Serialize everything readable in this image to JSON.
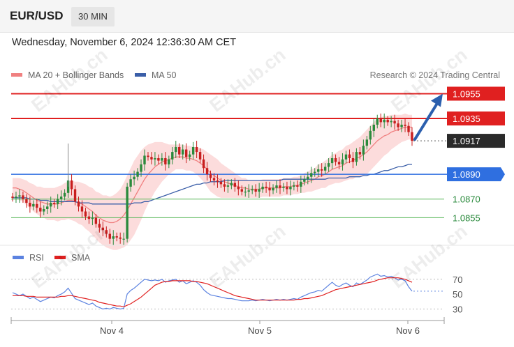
{
  "header": {
    "symbol": "EUR/USD",
    "timeframe": "30 MIN",
    "datetime": "Wednesday, November 6, 2024 12:36:30 AM CET"
  },
  "legend": {
    "ma20_label": "MA 20 + Bollinger Bands",
    "ma50_label": "MA 50",
    "credit": "Research © 2024 Trading Central"
  },
  "rsi_legend": {
    "rsi_label": "RSI",
    "sma_label": "SMA"
  },
  "watermark": "EAHub.cn",
  "colors": {
    "resistance": "#e02020",
    "support": "#2f6fe0",
    "target": "#5cb85c",
    "candle_up": "#2a8a3c",
    "candle_down": "#c81e1e",
    "ma20": "#f08080",
    "ma50": "#3a5ea8",
    "band_fill": "#fbd0d0",
    "rsi": "#5b82e0",
    "rsi_sma": "#e02020",
    "arrow": "#2b5fae",
    "price_tag": "#2a2a2a"
  },
  "chart_data": [
    {
      "type": "candlestick",
      "ylim": [
        1.0835,
        1.0962
      ],
      "x_ticks": [
        "Nov 4",
        "Nov 5",
        "Nov 6"
      ],
      "levels": [
        {
          "value": 1.0955,
          "label": "1.0955",
          "kind": "resistance"
        },
        {
          "value": 1.0935,
          "label": "1.0935",
          "kind": "resistance"
        },
        {
          "value": 1.0917,
          "label": "1.0917",
          "kind": "last_price"
        },
        {
          "value": 1.089,
          "label": "1.0890",
          "kind": "support"
        },
        {
          "value": 1.087,
          "label": "1.0870",
          "kind": "target"
        },
        {
          "value": 1.0855,
          "label": "1.0855",
          "kind": "target"
        }
      ],
      "close": [
        1.0871,
        1.0872,
        1.0873,
        1.087,
        1.0867,
        1.0864,
        1.0866,
        1.0863,
        1.086,
        1.0862,
        1.0864,
        1.0867,
        1.0866,
        1.087,
        1.0872,
        1.0875,
        1.0885,
        1.0878,
        1.0868,
        1.0864,
        1.086,
        1.0856,
        1.0854,
        1.0855,
        1.085,
        1.0847,
        1.0845,
        1.0842,
        1.0838,
        1.084,
        1.0839,
        1.0838,
        1.0838,
        1.088,
        1.0886,
        1.0888,
        1.0892,
        1.0898,
        1.0905,
        1.0904,
        1.0902,
        1.0903,
        1.0901,
        1.0903,
        1.0898,
        1.0902,
        1.0908,
        1.0912,
        1.0906,
        1.091,
        1.0904,
        1.0906,
        1.0912,
        1.0908,
        1.0902,
        1.0895,
        1.089,
        1.0887,
        1.0885,
        1.0884,
        1.0882,
        1.088,
        1.0881,
        1.0883,
        1.088,
        1.0878,
        1.0876,
        1.0876,
        1.0877,
        1.0878,
        1.0876,
        1.0878,
        1.088,
        1.0879,
        1.0877,
        1.0879,
        1.0881,
        1.0879,
        1.088,
        1.0878,
        1.088,
        1.0881,
        1.088,
        1.0884,
        1.0886,
        1.0888,
        1.0891,
        1.0892,
        1.0894,
        1.0893,
        1.0896,
        1.0899,
        1.0903,
        1.09,
        1.0898,
        1.0902,
        1.0906,
        1.0903,
        1.09,
        1.0908,
        1.0906,
        1.0913,
        1.0918,
        1.0925,
        1.093,
        1.0935,
        1.0932,
        1.0934,
        1.0932,
        1.0933,
        1.0931,
        1.0928,
        1.093,
        1.0929,
        1.0924,
        1.0917
      ],
      "ma20": [
        1.0879,
        1.0879,
        1.0878,
        1.0877,
        1.0875,
        1.0873,
        1.0871,
        1.0869,
        1.0868,
        1.0867,
        1.0866,
        1.0866,
        1.0866,
        1.0866,
        1.0867,
        1.0868,
        1.0869,
        1.0869,
        1.0868,
        1.0867,
        1.0866,
        1.0864,
        1.0862,
        1.086,
        1.0857,
        1.0855,
        1.0853,
        1.0852,
        1.0851,
        1.0851,
        1.0852,
        1.0854,
        1.0857,
        1.0861,
        1.0866,
        1.0871,
        1.0876,
        1.0881,
        1.0886,
        1.089,
        1.0893,
        1.0896,
        1.0898,
        1.09,
        1.0901,
        1.0902,
        1.0903,
        1.0904,
        1.0904,
        1.0904,
        1.0903,
        1.0903,
        1.0902,
        1.0901,
        1.0899,
        1.0897,
        1.0894,
        1.0891,
        1.0889,
        1.0887,
        1.0885,
        1.0884,
        1.0883,
        1.0882,
        1.0881,
        1.088,
        1.0879,
        1.0879,
        1.0878,
        1.0878,
        1.0878,
        1.0878,
        1.0879,
        1.0879,
        1.0879,
        1.0879,
        1.0879,
        1.0879,
        1.088,
        1.088,
        1.088,
        1.0881,
        1.0881,
        1.0882,
        1.0883,
        1.0884,
        1.0885,
        1.0886,
        1.0888,
        1.0889,
        1.089,
        1.0892,
        1.0894,
        1.0895,
        1.0896,
        1.0897,
        1.0899,
        1.09,
        1.0901,
        1.0903,
        1.0904,
        1.0906,
        1.0908,
        1.0911,
        1.0914,
        1.0917,
        1.0919,
        1.0921,
        1.0922,
        1.0924,
        1.0925,
        1.0926,
        1.0927,
        1.0928,
        1.0928,
        1.0928
      ],
      "ma50": [
        1.0871,
        1.0871,
        1.0871,
        1.0871,
        1.0871,
        1.087,
        1.087,
        1.087,
        1.0869,
        1.0869,
        1.0869,
        1.0868,
        1.0868,
        1.0868,
        1.0868,
        1.0868,
        1.0868,
        1.0868,
        1.0868,
        1.0867,
        1.0867,
        1.0867,
        1.0867,
        1.0866,
        1.0866,
        1.0866,
        1.0866,
        1.0866,
        1.0866,
        1.0866,
        1.0866,
        1.0866,
        1.0866,
        1.0866,
        1.0866,
        1.0867,
        1.0867,
        1.0867,
        1.0868,
        1.0868,
        1.0869,
        1.087,
        1.0871,
        1.0872,
        1.0873,
        1.0874,
        1.0875,
        1.0876,
        1.0877,
        1.0878,
        1.0879,
        1.088,
        1.0881,
        1.0882,
        1.0882,
        1.0883,
        1.0883,
        1.0884,
        1.0884,
        1.0884,
        1.0884,
        1.0885,
        1.0885,
        1.0885,
        1.0885,
        1.0885,
        1.0885,
        1.0885,
        1.0885,
        1.0885,
        1.0885,
        1.0885,
        1.0885,
        1.0885,
        1.0885,
        1.0885,
        1.0885,
        1.0885,
        1.0886,
        1.0886,
        1.0886,
        1.0886,
        1.0886,
        1.0886,
        1.0886,
        1.0886,
        1.0886,
        1.0886,
        1.0886,
        1.0886,
        1.0886,
        1.0887,
        1.0887,
        1.0887,
        1.0887,
        1.0887,
        1.0887,
        1.0888,
        1.0888,
        1.0888,
        1.0888,
        1.0889,
        1.0889,
        1.089,
        1.089,
        1.0891,
        1.0892,
        1.0893,
        1.0893,
        1.0894,
        1.0895,
        1.0896,
        1.0896,
        1.0897,
        1.0898,
        1.0898
      ],
      "bb_width": [
        0.0008,
        0.0008,
        0.0009,
        0.0009,
        0.001,
        0.001,
        0.0011,
        0.0011,
        0.0012,
        0.0012,
        0.0013,
        0.0013,
        0.0013,
        0.0014,
        0.0014,
        0.0015,
        0.0015,
        0.0016,
        0.0016,
        0.0017,
        0.0017,
        0.0018,
        0.0018,
        0.0019,
        0.0019,
        0.002,
        0.002,
        0.0021,
        0.0021,
        0.0022,
        0.0023,
        0.0024,
        0.0026,
        0.0028,
        0.0029,
        0.003,
        0.0029,
        0.0028,
        0.0026,
        0.0024,
        0.0022,
        0.002,
        0.0018,
        0.0016,
        0.0014,
        0.0012,
        0.0011,
        0.001,
        0.001,
        0.001,
        0.001,
        0.001,
        0.001,
        0.0011,
        0.0012,
        0.0013,
        0.0014,
        0.0015,
        0.0015,
        0.0015,
        0.0014,
        0.0013,
        0.0012,
        0.0011,
        0.001,
        0.0009,
        0.0008,
        0.0008,
        0.0007,
        0.0007,
        0.0007,
        0.0007,
        0.0007,
        0.0007,
        0.0007,
        0.0007,
        0.0007,
        0.0007,
        0.0007,
        0.0007,
        0.0007,
        0.0007,
        0.0007,
        0.0007,
        0.0008,
        0.0008,
        0.0009,
        0.0009,
        0.001,
        0.001,
        0.0011,
        0.0011,
        0.0012,
        0.0012,
        0.0013,
        0.0013,
        0.0014,
        0.0014,
        0.0015,
        0.0015,
        0.0016,
        0.0017,
        0.0018,
        0.0018,
        0.0018,
        0.0018,
        0.0017,
        0.0016,
        0.0015,
        0.0014,
        0.0013,
        0.0012,
        0.0011,
        0.0011,
        0.001,
        0.001
      ],
      "arrow": {
        "from": 1.0917,
        "to": 1.0955
      }
    },
    {
      "type": "line",
      "ylim": [
        22,
        82
      ],
      "y_ticks": [
        30,
        50,
        70
      ],
      "reference_levels": [
        70,
        30
      ],
      "series": [
        {
          "name": "RSI",
          "values": [
            52,
            50,
            48,
            50,
            47,
            44,
            46,
            43,
            40,
            42,
            44,
            46,
            45,
            48,
            50,
            53,
            58,
            51,
            44,
            42,
            40,
            38,
            36,
            38,
            34,
            32,
            30,
            31,
            30,
            32,
            31,
            30,
            31,
            50,
            55,
            58,
            62,
            66,
            70,
            69,
            68,
            69,
            68,
            70,
            66,
            68,
            69,
            70,
            66,
            68,
            64,
            66,
            68,
            66,
            62,
            56,
            52,
            49,
            48,
            47,
            46,
            45,
            44,
            44,
            43,
            42,
            41,
            41,
            41,
            42,
            41,
            42,
            43,
            42,
            41,
            42,
            43,
            42,
            43,
            42,
            43,
            44,
            43,
            46,
            48,
            50,
            52,
            53,
            55,
            54,
            58,
            62,
            66,
            62,
            60,
            63,
            65,
            62,
            60,
            65,
            63,
            66,
            69,
            73,
            75,
            77,
            74,
            75,
            73,
            74,
            72,
            69,
            70,
            68,
            60,
            54
          ]
        },
        {
          "name": "SMA",
          "values": [
            48,
            48,
            48,
            48,
            47,
            47,
            47,
            46,
            46,
            46,
            46,
            46,
            46,
            46,
            47,
            47,
            48,
            48,
            47,
            46,
            45,
            44,
            43,
            42,
            41,
            39,
            38,
            37,
            36,
            35,
            34,
            34,
            33,
            35,
            37,
            40,
            43,
            46,
            50,
            54,
            58,
            62,
            64,
            66,
            67,
            67,
            68,
            68,
            68,
            68,
            68,
            68,
            67,
            67,
            66,
            65,
            64,
            62,
            60,
            58,
            56,
            54,
            52,
            50,
            48,
            47,
            46,
            45,
            44,
            43,
            42,
            42,
            42,
            42,
            42,
            42,
            42,
            42,
            42,
            42,
            42,
            42,
            43,
            43,
            44,
            44,
            45,
            46,
            47,
            48,
            50,
            52,
            54,
            56,
            57,
            58,
            59,
            60,
            61,
            62,
            63,
            64,
            65,
            66,
            67,
            69,
            70,
            71,
            72,
            72,
            72,
            72,
            71,
            70,
            68,
            66
          ]
        }
      ]
    }
  ]
}
